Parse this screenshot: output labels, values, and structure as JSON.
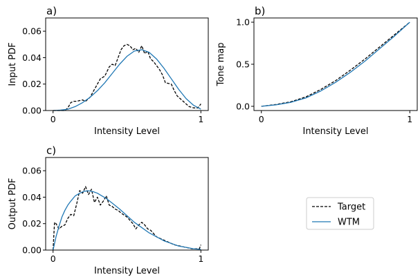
{
  "chart_data": [
    {
      "panel_label": "a)",
      "type": "line",
      "xlabel": "Intensity Level",
      "ylabel": "Input PDF",
      "xlim": [
        -0.05,
        1.05
      ],
      "ylim": [
        0.0,
        0.07
      ],
      "xticks": [
        0,
        1
      ],
      "xtick_labels": [
        "0",
        "1"
      ],
      "yticks": [
        0.0,
        0.02,
        0.04,
        0.06
      ],
      "ytick_labels": [
        "0.00",
        "0.02",
        "0.04",
        "0.06"
      ],
      "grid": false,
      "series": [
        {
          "name": "Target",
          "style": "dashed",
          "color": "#000000",
          "x": [
            0.0,
            0.08,
            0.1,
            0.12,
            0.14,
            0.16,
            0.2,
            0.22,
            0.25,
            0.28,
            0.3,
            0.32,
            0.35,
            0.38,
            0.4,
            0.42,
            0.44,
            0.46,
            0.48,
            0.5,
            0.52,
            0.54,
            0.56,
            0.58,
            0.6,
            0.62,
            0.64,
            0.66,
            0.68,
            0.7,
            0.72,
            0.74,
            0.76,
            0.8,
            0.82,
            0.84,
            0.86,
            0.88,
            0.9,
            0.92,
            0.95,
            0.98,
            1.0
          ],
          "y": [
            0.0,
            0.0,
            0.002,
            0.006,
            0.007,
            0.007,
            0.008,
            0.007,
            0.01,
            0.016,
            0.02,
            0.024,
            0.026,
            0.033,
            0.035,
            0.034,
            0.04,
            0.046,
            0.049,
            0.05,
            0.049,
            0.046,
            0.047,
            0.044,
            0.049,
            0.043,
            0.045,
            0.039,
            0.037,
            0.034,
            0.031,
            0.027,
            0.021,
            0.02,
            0.015,
            0.011,
            0.009,
            0.007,
            0.005,
            0.003,
            0.002,
            0.002,
            0.005
          ]
        },
        {
          "name": "WTM",
          "style": "solid",
          "color": "#1f77b4",
          "x": [
            0.0,
            0.05,
            0.1,
            0.15,
            0.2,
            0.25,
            0.3,
            0.35,
            0.4,
            0.45,
            0.5,
            0.55,
            0.6,
            0.65,
            0.7,
            0.75,
            0.8,
            0.85,
            0.9,
            0.95,
            1.0
          ],
          "y": [
            0.0,
            0.0003,
            0.001,
            0.003,
            0.006,
            0.01,
            0.015,
            0.021,
            0.028,
            0.035,
            0.041,
            0.045,
            0.046,
            0.044,
            0.039,
            0.032,
            0.024,
            0.016,
            0.009,
            0.004,
            0.001
          ]
        }
      ]
    },
    {
      "panel_label": "b)",
      "type": "line",
      "xlabel": "Intensity Level",
      "ylabel": "Tone map",
      "xlim": [
        -0.05,
        1.05
      ],
      "ylim": [
        -0.05,
        1.05
      ],
      "xticks": [
        0,
        1
      ],
      "xtick_labels": [
        "0",
        "1"
      ],
      "yticks": [
        0.0,
        0.5,
        1.0
      ],
      "ytick_labels": [
        "0.0",
        "0.5",
        "1.0"
      ],
      "grid": false,
      "series": [
        {
          "name": "Target",
          "style": "dashed",
          "color": "#000000",
          "x": [
            0.0,
            0.1,
            0.2,
            0.3,
            0.4,
            0.5,
            0.6,
            0.7,
            0.8,
            0.9,
            1.0
          ],
          "y": [
            0.0,
            0.022,
            0.055,
            0.112,
            0.2,
            0.305,
            0.43,
            0.565,
            0.71,
            0.855,
            1.0
          ]
        },
        {
          "name": "WTM",
          "style": "solid",
          "color": "#1f77b4",
          "x": [
            0.0,
            0.1,
            0.2,
            0.3,
            0.4,
            0.5,
            0.6,
            0.7,
            0.8,
            0.9,
            1.0
          ],
          "y": [
            0.0,
            0.018,
            0.048,
            0.1,
            0.182,
            0.285,
            0.405,
            0.54,
            0.69,
            0.84,
            1.0
          ]
        }
      ]
    },
    {
      "panel_label": "c)",
      "type": "line",
      "xlabel": "Intensity Level",
      "ylabel": "Output PDF",
      "xlim": [
        -0.05,
        1.05
      ],
      "ylim": [
        0.0,
        0.07
      ],
      "xticks": [
        0,
        1
      ],
      "xtick_labels": [
        "0",
        "1"
      ],
      "yticks": [
        0.0,
        0.02,
        0.04,
        0.06
      ],
      "ytick_labels": [
        "0.00",
        "0.02",
        "0.04",
        "0.06"
      ],
      "grid": false,
      "series": [
        {
          "name": "Target",
          "style": "dashed",
          "color": "#000000",
          "x": [
            0.0,
            0.01,
            0.02,
            0.04,
            0.06,
            0.08,
            0.1,
            0.12,
            0.14,
            0.16,
            0.18,
            0.2,
            0.22,
            0.24,
            0.26,
            0.28,
            0.3,
            0.32,
            0.34,
            0.36,
            0.38,
            0.4,
            0.42,
            0.44,
            0.46,
            0.5,
            0.54,
            0.56,
            0.58,
            0.6,
            0.62,
            0.64,
            0.66,
            0.7,
            0.74,
            0.78,
            0.82,
            0.86,
            0.9,
            0.94,
            0.97,
            0.99,
            1.0
          ],
          "y": [
            0.0,
            0.021,
            0.02,
            0.016,
            0.018,
            0.019,
            0.024,
            0.027,
            0.026,
            0.035,
            0.045,
            0.043,
            0.048,
            0.042,
            0.046,
            0.036,
            0.04,
            0.034,
            0.037,
            0.041,
            0.034,
            0.033,
            0.031,
            0.03,
            0.028,
            0.025,
            0.02,
            0.016,
            0.019,
            0.021,
            0.019,
            0.016,
            0.015,
            0.01,
            0.008,
            0.006,
            0.004,
            0.003,
            0.002,
            0.001,
            0.001,
            0.001,
            0.004
          ]
        },
        {
          "name": "WTM",
          "style": "solid",
          "color": "#1f77b4",
          "x": [
            0.0,
            0.02,
            0.04,
            0.06,
            0.08,
            0.1,
            0.12,
            0.15,
            0.18,
            0.21,
            0.24,
            0.27,
            0.3,
            0.33,
            0.36,
            0.4,
            0.45,
            0.5,
            0.55,
            0.6,
            0.65,
            0.7,
            0.75,
            0.8,
            0.85,
            0.9,
            0.95,
            1.0
          ],
          "y": [
            0.0,
            0.01,
            0.018,
            0.025,
            0.03,
            0.034,
            0.037,
            0.041,
            0.043,
            0.0445,
            0.0448,
            0.0442,
            0.043,
            0.041,
            0.039,
            0.0355,
            0.031,
            0.026,
            0.021,
            0.017,
            0.013,
            0.01,
            0.007,
            0.005,
            0.003,
            0.002,
            0.001,
            0.0005
          ]
        }
      ]
    }
  ],
  "legend": {
    "placement": "bottom-right",
    "entries": [
      {
        "label": "Target",
        "style": "dashed",
        "color": "#000000"
      },
      {
        "label": "WTM",
        "style": "solid",
        "color": "#1f77b4"
      }
    ]
  }
}
